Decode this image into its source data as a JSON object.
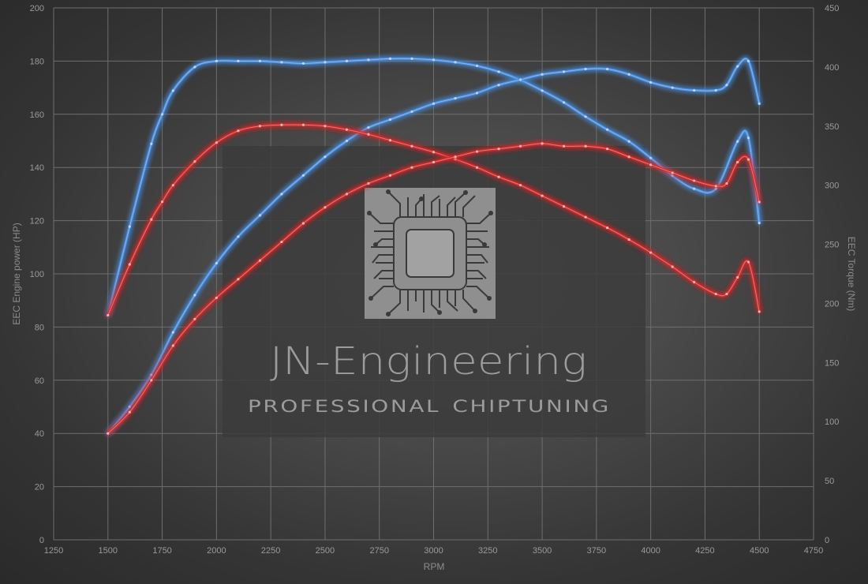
{
  "chart_data": {
    "type": "line",
    "xlabel": "RPM",
    "ylabel_left": "EEC Engine power (HP)",
    "ylabel_right": "EEC Torque (Nm)",
    "xlim": [
      1250,
      4750
    ],
    "ylim_left": [
      0,
      200
    ],
    "ylim_right": [
      0,
      450
    ],
    "x_ticks": [
      1250,
      1500,
      1750,
      2000,
      2250,
      2500,
      2750,
      3000,
      3250,
      3500,
      3750,
      4000,
      4250,
      4500,
      4750
    ],
    "y_left_ticks": [
      0,
      20,
      40,
      60,
      80,
      100,
      120,
      140,
      160,
      180,
      200
    ],
    "y_right_ticks": [
      0,
      50,
      100,
      150,
      200,
      250,
      300,
      350,
      400,
      450
    ],
    "grid": true,
    "series": [
      {
        "axis": "right",
        "color": "#4a8fe0",
        "x": [
          1500,
          1600,
          1700,
          1750,
          1800,
          1900,
          2000,
          2100,
          2200,
          2300,
          2400,
          2500,
          2600,
          2700,
          2800,
          2900,
          3000,
          3100,
          3200,
          3300,
          3400,
          3500,
          3600,
          3700,
          3800,
          3900,
          4000,
          4100,
          4200,
          4300,
          4400,
          4450,
          4500
        ],
        "y": [
          190,
          265,
          335,
          360,
          380,
          400,
          405,
          405,
          405,
          404,
          403,
          404,
          405,
          406,
          407,
          407,
          406,
          404,
          401,
          396,
          389,
          380,
          370,
          358,
          347,
          337,
          323,
          308,
          297,
          297,
          337,
          340,
          268
        ]
      },
      {
        "axis": "left",
        "color": "#4a8fe0",
        "x": [
          1500,
          1600,
          1700,
          1800,
          1900,
          2000,
          2100,
          2200,
          2300,
          2400,
          2500,
          2600,
          2700,
          2800,
          2900,
          3000,
          3100,
          3200,
          3300,
          3400,
          3500,
          3600,
          3700,
          3800,
          3900,
          4000,
          4100,
          4200,
          4300,
          4350,
          4400,
          4450,
          4500
        ],
        "y": [
          40,
          50,
          62,
          78,
          92,
          104,
          114,
          122,
          130,
          137,
          144,
          150,
          155,
          158,
          161,
          164,
          166,
          168,
          171,
          173,
          175,
          176,
          177,
          177,
          175,
          172,
          170,
          169,
          169,
          171,
          178,
          180,
          164
        ]
      },
      {
        "axis": "right",
        "color": "#d22b2b",
        "x": [
          1500,
          1600,
          1700,
          1750,
          1800,
          1900,
          2000,
          2100,
          2200,
          2300,
          2400,
          2500,
          2600,
          2700,
          2800,
          2900,
          3000,
          3100,
          3200,
          3300,
          3400,
          3500,
          3600,
          3700,
          3800,
          3900,
          4000,
          4100,
          4200,
          4300,
          4350,
          4400,
          4450,
          4500
        ],
        "y": [
          190,
          233,
          271,
          286,
          300,
          320,
          336,
          346,
          350,
          351,
          351,
          350,
          347,
          343,
          338,
          333,
          328,
          322,
          315,
          307,
          300,
          291,
          282,
          273,
          264,
          254,
          243,
          231,
          218,
          208,
          208,
          222,
          235,
          193
        ]
      },
      {
        "axis": "left",
        "color": "#d22b2b",
        "x": [
          1500,
          1600,
          1700,
          1800,
          1900,
          2000,
          2100,
          2200,
          2300,
          2400,
          2500,
          2600,
          2700,
          2800,
          2900,
          3000,
          3100,
          3200,
          3300,
          3400,
          3500,
          3600,
          3700,
          3800,
          3900,
          4000,
          4100,
          4200,
          4300,
          4350,
          4400,
          4450,
          4500
        ],
        "y": [
          40,
          48,
          60,
          73,
          83,
          91,
          98,
          105,
          112,
          119,
          125,
          130,
          134,
          137,
          140,
          142,
          144,
          146,
          147,
          148,
          149,
          148,
          148,
          147,
          144,
          141,
          138,
          135,
          133,
          134,
          142,
          143,
          127
        ]
      }
    ]
  },
  "watermark": {
    "brand": "JN-Engineering",
    "tagline": "professional chiptuning"
  }
}
